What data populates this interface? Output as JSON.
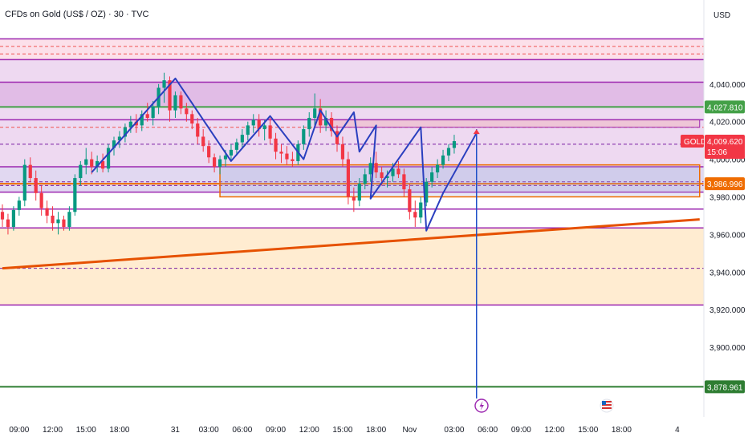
{
  "chart_data": {
    "type": "candlestick",
    "title": "CFDs on Gold (US$ / OZ) · 30 · TVC",
    "currency": "USD",
    "symbol": "GOLD",
    "last_price": "4,009.620",
    "countdown": "15:06",
    "price_labels": [
      {
        "value": 4027.81,
        "text": "4,027.810",
        "color": "#43a047"
      },
      {
        "value": 3986.996,
        "text": "3,986.996",
        "color": "#ef6c00"
      },
      {
        "value": 3878.961,
        "text": "3,878.961",
        "color": "#2e7d32"
      }
    ],
    "ylim": [
      3870,
      4068
    ],
    "yticks": [
      {
        "value": 4040,
        "text": "4,040.000"
      },
      {
        "value": 4020,
        "text": "4,020.000"
      },
      {
        "value": 4000,
        "text": "4,000.000"
      },
      {
        "value": 3980,
        "text": "3,980.000"
      },
      {
        "value": 3960,
        "text": "3,960.000"
      },
      {
        "value": 3940,
        "text": "3,940.000"
      },
      {
        "value": 3920,
        "text": "3,920.000"
      },
      {
        "value": 3900,
        "text": "3,900.000"
      }
    ],
    "xticks": [
      {
        "i": 3,
        "text": "09:00"
      },
      {
        "i": 9,
        "text": "12:00"
      },
      {
        "i": 15,
        "text": "15:00"
      },
      {
        "i": 21,
        "text": "18:00"
      },
      {
        "i": 31,
        "text": "31"
      },
      {
        "i": 37,
        "text": "03:00"
      },
      {
        "i": 43,
        "text": "06:00"
      },
      {
        "i": 49,
        "text": "09:00"
      },
      {
        "i": 55,
        "text": "12:00"
      },
      {
        "i": 61,
        "text": "15:00"
      },
      {
        "i": 67,
        "text": "18:00"
      },
      {
        "i": 73,
        "text": "Nov"
      },
      {
        "i": 81,
        "text": "03:00"
      },
      {
        "i": 87,
        "text": "06:00"
      },
      {
        "i": 93,
        "text": "09:00"
      },
      {
        "i": 99,
        "text": "12:00"
      },
      {
        "i": 105,
        "text": "15:00"
      },
      {
        "i": 111,
        "text": "18:00"
      },
      {
        "i": 121,
        "text": "4"
      }
    ],
    "candles": [
      [
        3972,
        3976,
        3964,
        3968
      ],
      [
        3968,
        3971,
        3960,
        3964
      ],
      [
        3964,
        3975,
        3962,
        3973
      ],
      [
        3973,
        3980,
        3970,
        3978
      ],
      [
        3978,
        4000,
        3975,
        3997
      ],
      [
        3997,
        4001,
        3988,
        3990
      ],
      [
        3990,
        3994,
        3978,
        3982
      ],
      [
        3982,
        3986,
        3970,
        3974
      ],
      [
        3974,
        3978,
        3966,
        3970
      ],
      [
        3970,
        3975,
        3962,
        3966
      ],
      [
        3966,
        3972,
        3960,
        3968
      ],
      [
        3968,
        3970,
        3962,
        3964
      ],
      [
        3964,
        3975,
        3962,
        3972
      ],
      [
        3972,
        3992,
        3970,
        3990
      ],
      [
        3990,
        3999,
        3986,
        3997
      ],
      [
        3997,
        4006,
        3992,
        4000
      ],
      [
        4000,
        4004,
        3992,
        3996
      ],
      [
        3996,
        4002,
        3993,
        3999
      ],
      [
        3999,
        4003,
        3993,
        3995
      ],
      [
        3995,
        4008,
        3993,
        4006
      ],
      [
        4006,
        4012,
        4002,
        4010
      ],
      [
        4010,
        4015,
        4006,
        4012
      ],
      [
        4012,
        4019,
        4009,
        4017
      ],
      [
        4017,
        4023,
        4014,
        4020
      ],
      [
        4020,
        4024,
        4014,
        4018
      ],
      [
        4018,
        4026,
        4015,
        4024
      ],
      [
        4024,
        4030,
        4020,
        4022
      ],
      [
        4022,
        4031,
        4018,
        4028
      ],
      [
        4028,
        4040,
        4024,
        4038
      ],
      [
        4038,
        4046,
        4030,
        4042
      ],
      [
        4042,
        4044,
        4020,
        4026
      ],
      [
        4026,
        4036,
        4022,
        4034
      ],
      [
        4034,
        4036,
        4024,
        4027
      ],
      [
        4027,
        4030,
        4020,
        4024
      ],
      [
        4024,
        4026,
        4016,
        4019
      ],
      [
        4019,
        4022,
        4008,
        4012
      ],
      [
        4012,
        4016,
        4004,
        4007
      ],
      [
        4007,
        4010,
        3998,
        4001
      ],
      [
        4001,
        4003,
        3993,
        3996
      ],
      [
        3996,
        4002,
        3992,
        4000
      ],
      [
        4000,
        4005,
        3996,
        4002
      ],
      [
        4002,
        4008,
        3999,
        4005
      ],
      [
        4005,
        4011,
        4002,
        4009
      ],
      [
        4009,
        4016,
        4006,
        4013
      ],
      [
        4013,
        4020,
        4010,
        4018
      ],
      [
        4018,
        4024,
        4014,
        4021
      ],
      [
        4021,
        4024,
        4012,
        4016
      ],
      [
        4016,
        4021,
        4010,
        4018
      ],
      [
        4018,
        4022,
        4008,
        4011
      ],
      [
        4011,
        4014,
        4000,
        4004
      ],
      [
        4004,
        4008,
        3998,
        4003
      ],
      [
        4003,
        4007,
        3997,
        4000
      ],
      [
        4000,
        4004,
        3996,
        3999
      ],
      [
        3999,
        4010,
        3997,
        4008
      ],
      [
        4008,
        4018,
        4005,
        4016
      ],
      [
        4016,
        4025,
        4012,
        4022
      ],
      [
        4022,
        4035,
        4018,
        4027
      ],
      [
        4027,
        4032,
        4014,
        4018
      ],
      [
        4018,
        4026,
        4015,
        4022
      ],
      [
        4022,
        4025,
        4012,
        4015
      ],
      [
        4015,
        4018,
        4004,
        4008
      ],
      [
        4008,
        4012,
        3996,
        4000
      ],
      [
        4000,
        4004,
        3976,
        3980
      ],
      [
        3980,
        3985,
        3972,
        3978
      ],
      [
        3978,
        3990,
        3975,
        3987
      ],
      [
        3987,
        3995,
        3984,
        3992
      ],
      [
        3992,
        4001,
        3988,
        3998
      ],
      [
        3998,
        4004,
        3990,
        3993
      ],
      [
        3993,
        3996,
        3986,
        3990
      ],
      [
        3990,
        3994,
        3985,
        3991
      ],
      [
        3991,
        3998,
        3988,
        3995
      ],
      [
        3995,
        3999,
        3990,
        3992
      ],
      [
        3992,
        3995,
        3980,
        3984
      ],
      [
        3984,
        3987,
        3968,
        3972
      ],
      [
        3972,
        3978,
        3964,
        3969
      ],
      [
        3969,
        3980,
        3966,
        3977
      ],
      [
        3977,
        3990,
        3975,
        3988
      ],
      [
        3988,
        3996,
        3985,
        3993
      ],
      [
        3993,
        4000,
        3990,
        3997
      ],
      [
        3997,
        4005,
        3995,
        4002
      ],
      [
        4002,
        4008,
        3999,
        4006
      ],
      [
        4006,
        4013,
        4003,
        4009.62
      ]
    ],
    "trend_line": {
      "from": {
        "i": 0,
        "v": 3942
      },
      "to": {
        "i": 125,
        "v": 3968
      }
    },
    "zigzag": [
      {
        "i": 16,
        "v": 3993
      },
      {
        "i": 31,
        "v": 4043
      },
      {
        "i": 41,
        "v": 3999
      },
      {
        "i": 48,
        "v": 4023
      },
      {
        "i": 54,
        "v": 4000
      },
      {
        "i": 57,
        "v": 4026
      },
      {
        "i": 60,
        "v": 4012
      },
      {
        "i": 63,
        "v": 4025
      },
      {
        "i": 64,
        "v": 4004
      },
      {
        "i": 67,
        "v": 4018
      },
      {
        "i": 66,
        "v": 3979
      },
      {
        "i": 75,
        "v": 4017
      },
      {
        "i": 76,
        "v": 3962
      },
      {
        "i": 79,
        "v": 3982
      },
      {
        "i": 85,
        "v": 4014
      }
    ],
    "horizontal_lines": [
      {
        "v": 4064,
        "color": "#9c27b0",
        "style": "solid"
      },
      {
        "v": 4060,
        "color": "#ef5350",
        "style": "dashed"
      },
      {
        "v": 4056,
        "color": "#ef5350",
        "style": "dashed"
      },
      {
        "v": 4053,
        "color": "#9c27b0",
        "style": "solid"
      },
      {
        "v": 4041,
        "color": "#9c27b0",
        "style": "solid"
      },
      {
        "v": 4021,
        "color": "#9c27b0",
        "style": "solid"
      },
      {
        "v": 4017,
        "color": "#ef5350",
        "style": "dashed"
      },
      {
        "v": 4008,
        "color": "#7b1fa2",
        "style": "dashed"
      },
      {
        "v": 3996,
        "color": "#9c27b0",
        "style": "solid"
      },
      {
        "v": 3988,
        "color": "#7b1fa2",
        "style": "dashed"
      },
      {
        "v": 3986,
        "color": "#7b1fa2",
        "style": "dashed"
      },
      {
        "v": 3982.5,
        "color": "#9c27b0",
        "style": "solid"
      },
      {
        "v": 3973.5,
        "color": "#9c27b0",
        "style": "solid"
      },
      {
        "v": 3963.5,
        "color": "#9c27b0",
        "style": "solid"
      },
      {
        "v": 3942,
        "color": "#7b1fa2",
        "style": "dashed"
      },
      {
        "v": 3922.5,
        "color": "#9c27b0",
        "style": "solid"
      }
    ],
    "zones": [
      {
        "from": 4053,
        "to": 4064,
        "color": "#f8bbd0",
        "opacity": 0.45
      },
      {
        "from": 3996,
        "to": 4053,
        "color": "#ce93d8",
        "opacity": 0.35
      },
      {
        "from": 4027.81,
        "to": 4041,
        "color": "#ba68c8",
        "opacity": 0.25
      },
      {
        "from": 3982.5,
        "to": 3996,
        "color": "#b39ddb",
        "opacity": 0.4
      },
      {
        "from": 3922.5,
        "to": 3963.5,
        "color": "#ffe0b2",
        "opacity": 0.6
      }
    ],
    "orange_box": {
      "i0": 39,
      "i1": 125,
      "top": 3997,
      "bottom": 3980
    },
    "red_box": {
      "i0": 56,
      "i1": 125,
      "top": 4021,
      "bottom": 4017
    },
    "event_line": {
      "i": 85
    },
    "green_line": {
      "v": 3878.961
    }
  }
}
